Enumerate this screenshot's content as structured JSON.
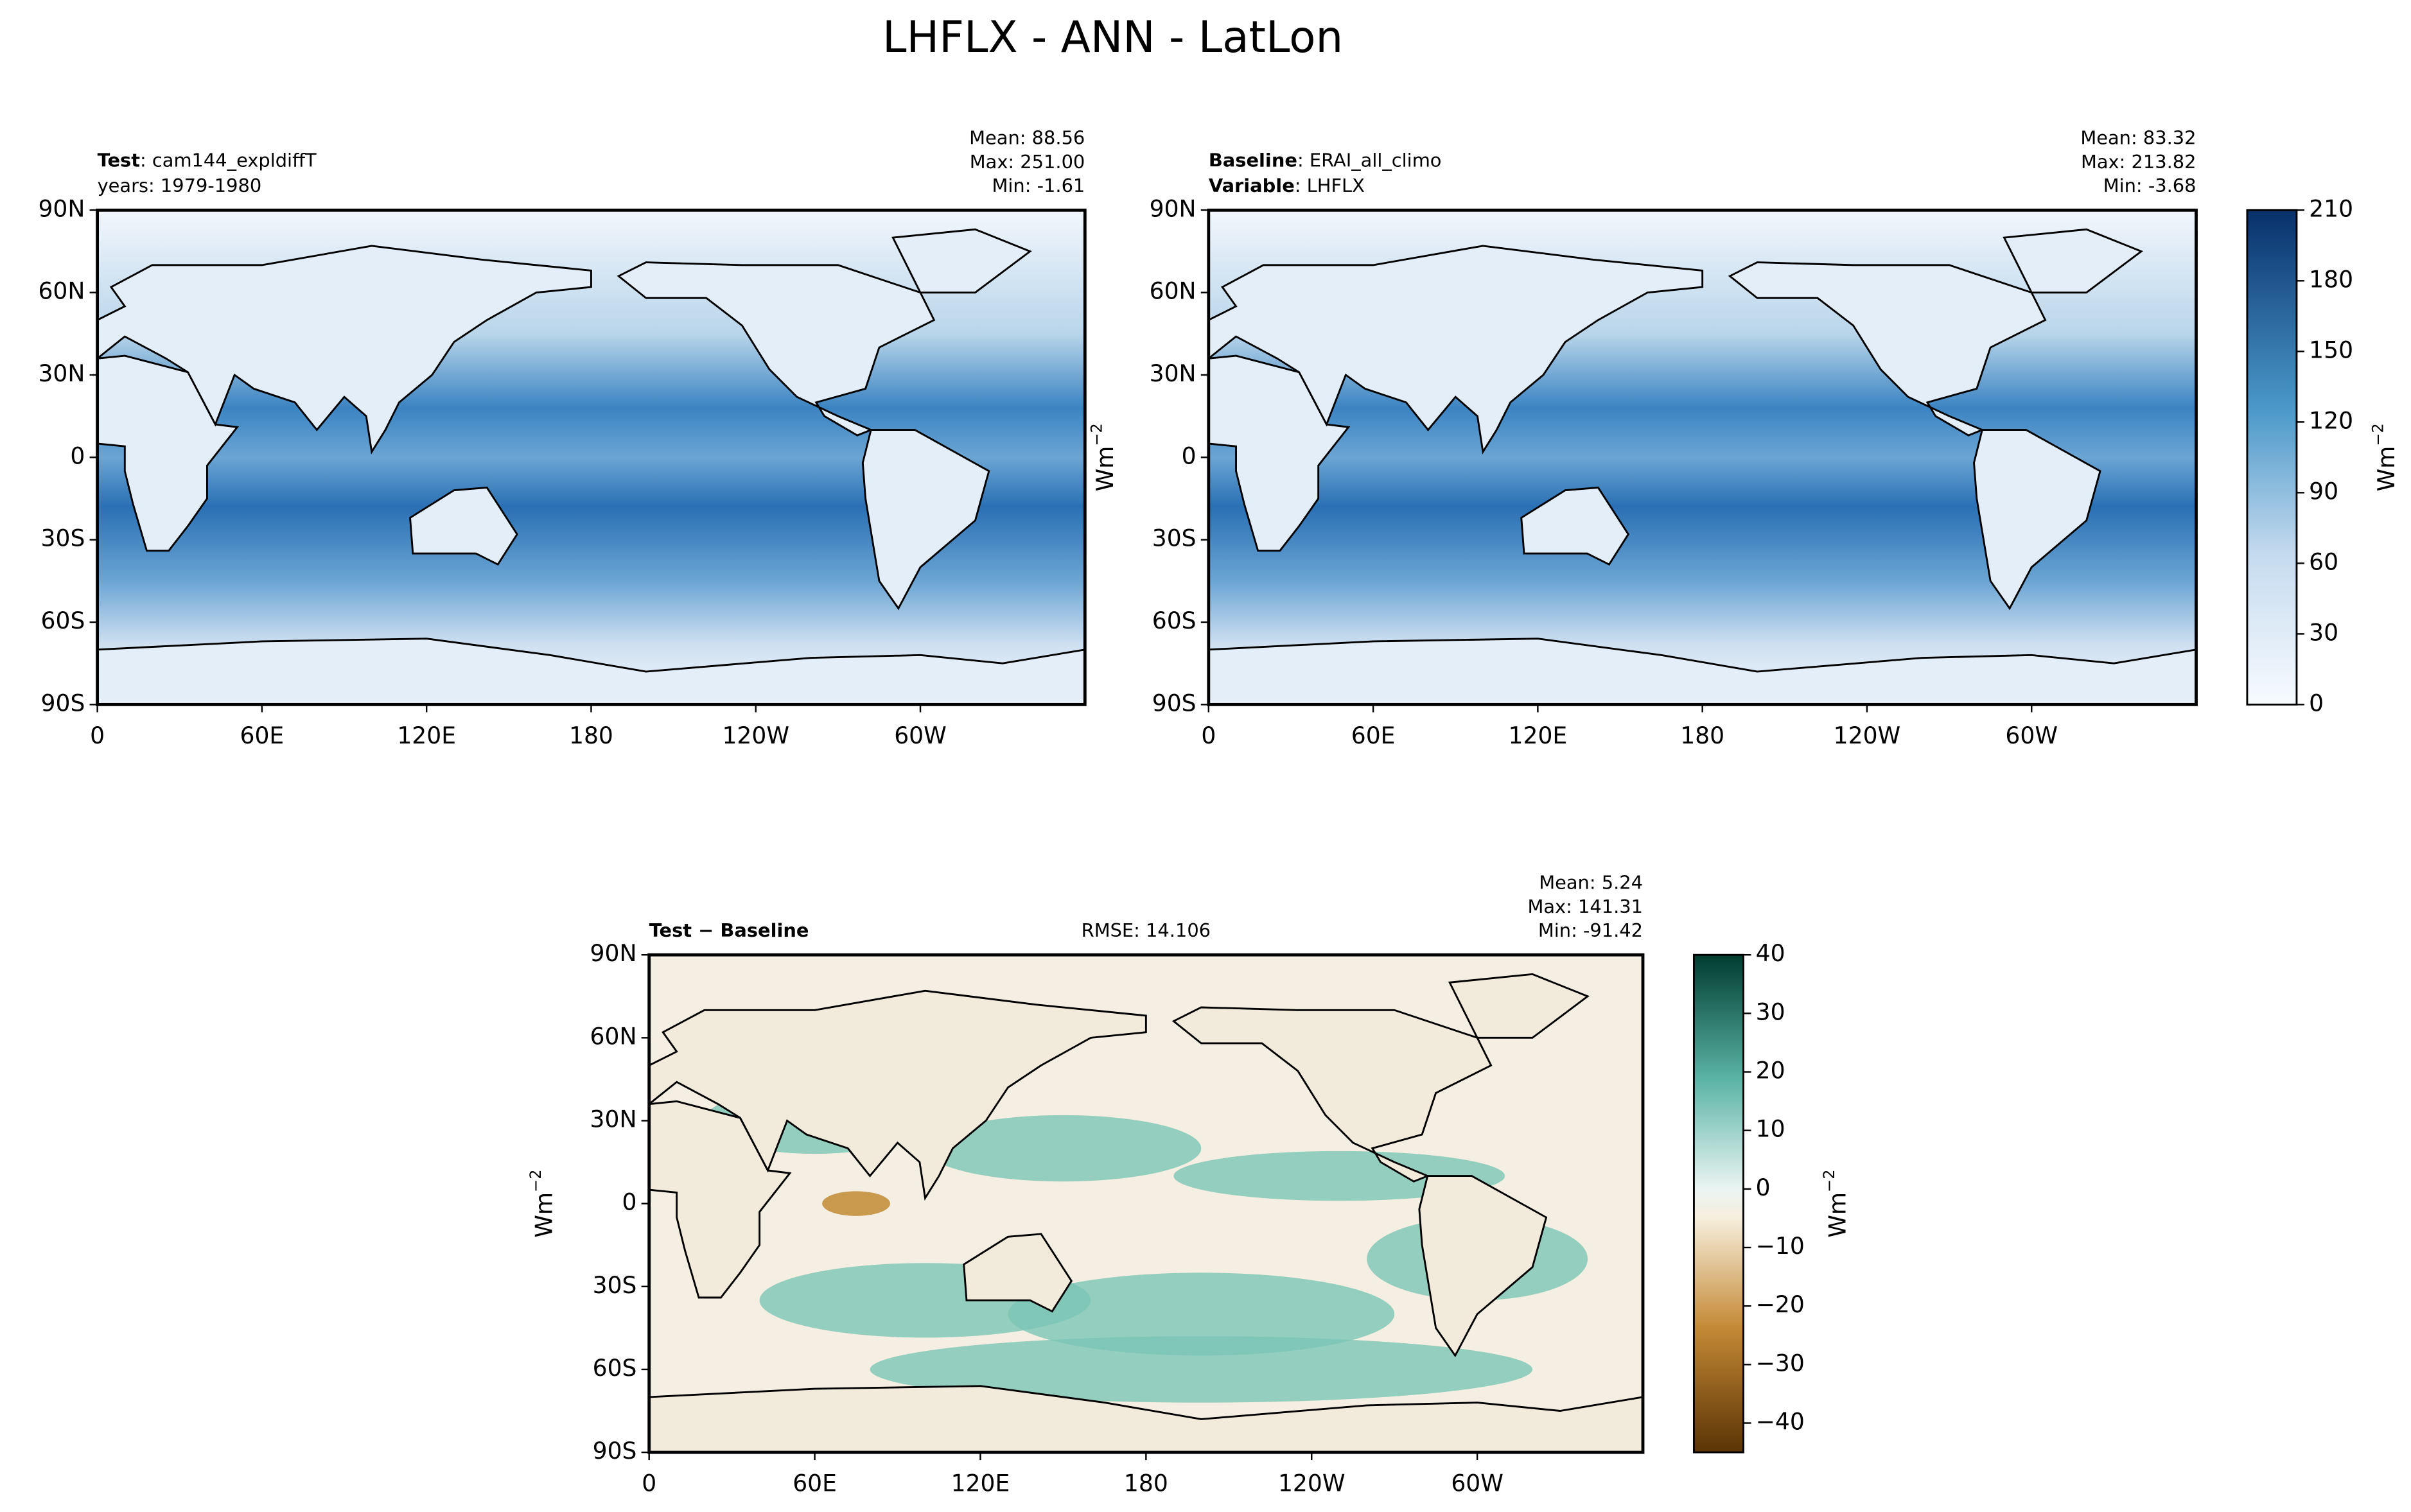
{
  "title": "LHFLX - ANN - LatLon",
  "unit": {
    "base": "Wm",
    "exponent": "−2"
  },
  "map_axes": {
    "xlim": [
      0,
      360
    ],
    "ylim": [
      -90,
      90
    ],
    "xticks": [
      0,
      {
        "value": 60,
        "label": "60E"
      },
      {
        "value": 120,
        "label": "120E"
      },
      180,
      {
        "value": 240,
        "label": "120W"
      },
      {
        "value": 300,
        "label": "60W"
      }
    ],
    "yticks": [
      {
        "value": 90,
        "label": "90N"
      },
      {
        "value": 60,
        "label": "60N"
      },
      {
        "value": 30,
        "label": "30N"
      },
      0,
      {
        "value": -30,
        "label": "30S"
      },
      {
        "value": -60,
        "label": "60S"
      },
      {
        "value": -90,
        "label": "90S"
      }
    ]
  },
  "panels": [
    {
      "left_lines": [
        {
          "label": "Test",
          "text": ": cam144_expldiffT"
        },
        {
          "text": "years: 1979-1980"
        }
      ],
      "stats": [
        "Mean: 88.56",
        "Max: 251.00",
        "Min: -1.61"
      ]
    },
    {
      "left_lines": [
        {
          "label": "Baseline",
          "text": ": ERAI_all_climo"
        },
        {
          "label": "Variable",
          "text": ": LHFLX"
        }
      ],
      "stats": [
        "Mean: 83.32",
        "Max: 213.82",
        "Min: -3.68"
      ]
    },
    {
      "left_lines": [
        {
          "label": "Test − Baseline"
        }
      ],
      "center": "RMSE: 14.106",
      "stats": [
        "Mean:  5.24",
        "Max: 141.31",
        "Min: -91.42"
      ]
    }
  ],
  "colorbars": [
    {
      "lim": [
        0,
        210
      ],
      "ticks": [
        0,
        30,
        60,
        90,
        120,
        150,
        180,
        210
      ]
    },
    {
      "lim": [
        -45,
        40
      ],
      "ticks": [
        {
          "value": -40,
          "label": "−40"
        },
        {
          "value": -30,
          "label": "−30"
        },
        {
          "value": -20,
          "label": "−20"
        },
        {
          "value": -10,
          "label": "−10"
        },
        0,
        10,
        20,
        30,
        40
      ]
    }
  ]
}
